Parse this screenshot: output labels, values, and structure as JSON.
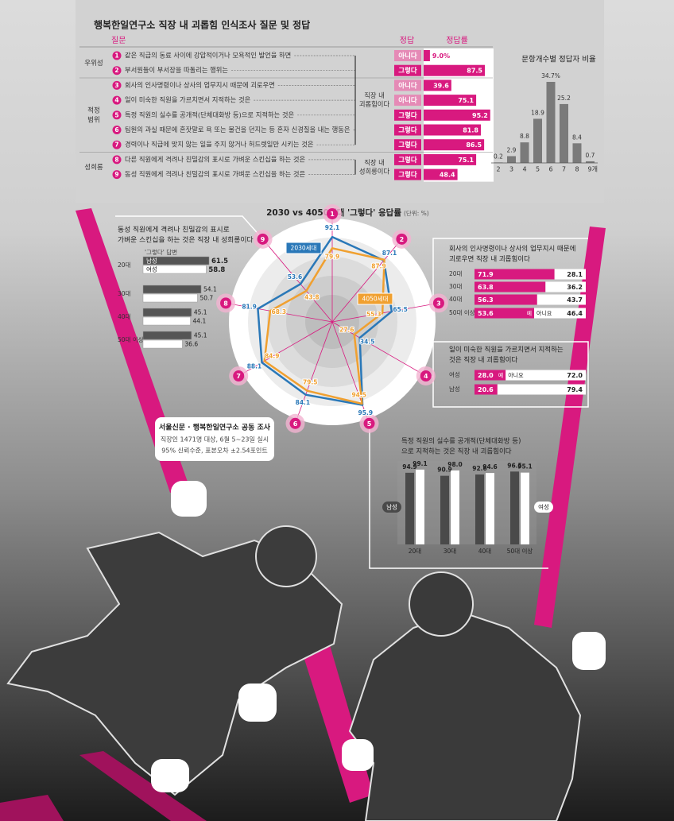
{
  "quiz_table": {
    "title": "행복한일연구소 직장 내 괴롭힘 인식조사 질문 및 정답",
    "headers": [
      "질문",
      "정답",
      "정답률"
    ],
    "bar_color": "#d8197f",
    "groups": [
      {
        "label": [
          "우위성"
        ]
      },
      {
        "label": [
          "적정",
          "범위"
        ]
      },
      {
        "label": [
          "성희롱"
        ]
      }
    ],
    "verdicts": [
      {
        "label": [
          "직장 내",
          "괴롭힘이다"
        ]
      },
      {
        "label": [
          "직장 내",
          "성희롱이다"
        ]
      }
    ],
    "rows": [
      {
        "no": "1",
        "question": "같은 직급의 동료 사이에 강압적이거나 모욕적인 발언을 하면",
        "answer": "아니다",
        "color": "#e58ab6",
        "rate": 9.0,
        "rate_label": "9.0%"
      },
      {
        "no": "2",
        "question": "부서원들이 부서장을 따돌리는 행위는",
        "answer": "그렇다",
        "color": "#d8197f",
        "rate": 87.5
      },
      {
        "no": "3",
        "question": "회사의 인사명령이나 상사의 업무지시 때문에 괴로우면",
        "answer": "아니다",
        "color": "#e58ab6",
        "rate": 39.6
      },
      {
        "no": "4",
        "question": "일이 미숙한 직원을 가르치면서 지적하는 것은",
        "answer": "아니다",
        "color": "#e58ab6",
        "rate": 75.1
      },
      {
        "no": "5",
        "question": "특정 직원의 실수를 공개적(단체대화방 등)으로 지적하는 것은",
        "answer": "그렇다",
        "color": "#d8197f",
        "rate": 95.2
      },
      {
        "no": "6",
        "question": "팀원의 과실 때문에 혼잣말로 욕 또는 물건을 던지는 등 혼자 신경질을 내는 행동은",
        "answer": "그렇다",
        "color": "#d8197f",
        "rate": 81.8
      },
      {
        "no": "7",
        "question": "경력이나 직급에 맞지 않는 일을 주지 않거나 허드렛일만 시키는 것은",
        "answer": "그렇다",
        "color": "#d8197f",
        "rate": 86.5
      },
      {
        "no": "8",
        "question": "다른 직원에게 격려나 친밀감의 표시로 가벼운 스킨십을 하는 것은",
        "answer": "그렇다",
        "color": "#d8197f",
        "rate": 75.1
      },
      {
        "no": "9",
        "question": "동성 직원에게 격려나 친밀감의 표시로 가벼운 스킨십을 하는 것은",
        "answer": "그렇다",
        "color": "#d8197f",
        "rate": 48.4
      }
    ]
  },
  "chart_data": [
    {
      "type": "bar",
      "title": "문항개수별 정답자 비율",
      "color": "#7a7a7a",
      "categories": [
        "2",
        "3",
        "4",
        "5",
        "6",
        "7",
        "8",
        "9개"
      ],
      "values": [
        0.2,
        2.9,
        8.8,
        18.9,
        34.7,
        25.2,
        8.4,
        0.7
      ],
      "value_labels": [
        "0.2",
        "2.9",
        "8.8",
        "18.9",
        "34.7%",
        "25.2",
        "8.4",
        "0.7"
      ]
    },
    {
      "type": "radar",
      "title": "2030 vs 4050세대 '그렇다' 응답률",
      "unit": "(단위: %)",
      "categories": [
        "1",
        "2",
        "3",
        "4",
        "5",
        "6",
        "7",
        "8",
        "9"
      ],
      "rlim": [
        0,
        100
      ],
      "axis_color": "#d8197f",
      "series": [
        {
          "name": "2030세대",
          "color": "#2a78b8",
          "values": [
            92.1,
            87.1,
            65.5,
            34.5,
            95.9,
            84.1,
            88.1,
            81.9,
            53.6
          ]
        },
        {
          "name": "4050세대",
          "color": "#f0a030",
          "values": [
            79.9,
            87.9,
            55.3,
            27.6,
            94.5,
            79.5,
            84.9,
            68.3,
            43.8
          ]
        }
      ]
    },
    {
      "type": "hbar",
      "title": [
        "동성 직원에게 격려나 친밀감의 표시로",
        "가벼운 스킨십을 하는 것은 직장 내 성희롱이다"
      ],
      "subtitle": "'그렇다' 답변",
      "categories": [
        "20대",
        "30대",
        "40대",
        "50대 이상"
      ],
      "series": [
        {
          "name": "남성",
          "color": "#555555",
          "values": [
            61.5,
            54.1,
            45.1,
            45.1
          ]
        },
        {
          "name": "여성",
          "color": "#ffffff",
          "values": [
            58.8,
            50.7,
            44.1,
            36.6
          ]
        }
      ]
    },
    {
      "type": "stacked_hbar",
      "title": [
        "회사의 인사명령이나 상사의 업무지시 때문에",
        "괴로우면 직장 내 괴롭힘이다"
      ],
      "categories": [
        "20대",
        "30대",
        "40대",
        "50대 이상"
      ],
      "series": [
        {
          "name": "예",
          "color": "#d8197f",
          "values": [
            71.9,
            63.8,
            56.3,
            53.6
          ]
        },
        {
          "name": "아니요",
          "color": "#ffffff",
          "values": [
            28.1,
            36.2,
            43.7,
            46.4
          ]
        }
      ]
    },
    {
      "type": "stacked_hbar",
      "title": [
        "일이 미숙한 직원을 가르치면서 지적하는",
        "것은 직장 내 괴롭힘이다"
      ],
      "categories": [
        "여성",
        "남성"
      ],
      "series": [
        {
          "name": "예",
          "color": "#d8197f",
          "values": [
            28.0,
            20.6
          ],
          "value_labels": [
            "28.0",
            "20.6"
          ]
        },
        {
          "name": "아니요",
          "color": "#ffffff",
          "values": [
            72.0,
            79.4
          ],
          "value_labels": [
            "72.0",
            "79.4"
          ]
        }
      ]
    },
    {
      "type": "grouped_bar",
      "title": [
        "특정 직원의 실수를 공개적(단체대화방 등)",
        "으로 지적하는 것은 직장 내 괴롭힘이다"
      ],
      "categories": [
        "20대",
        "30대",
        "40대",
        "50대 이상"
      ],
      "series": [
        {
          "name": "남성",
          "color": "#4a4a4a",
          "values": [
            94.9,
            90.9,
            92.6,
            96.5
          ]
        },
        {
          "name": "여성",
          "color": "#ffffff",
          "values": [
            99.1,
            98.0,
            94.6,
            95.1
          ],
          "value_labels": [
            "99.1",
            "98.0",
            "94.6",
            "95.1"
          ]
        }
      ]
    }
  ],
  "source": {
    "title": "서울신문 · 행복한일연구소 공동 조사",
    "lines": [
      "직장인 1471명 대상, 6월 5~23일 실시",
      "95% 신뢰수준, 표본오차 ±2.54포인트"
    ]
  }
}
